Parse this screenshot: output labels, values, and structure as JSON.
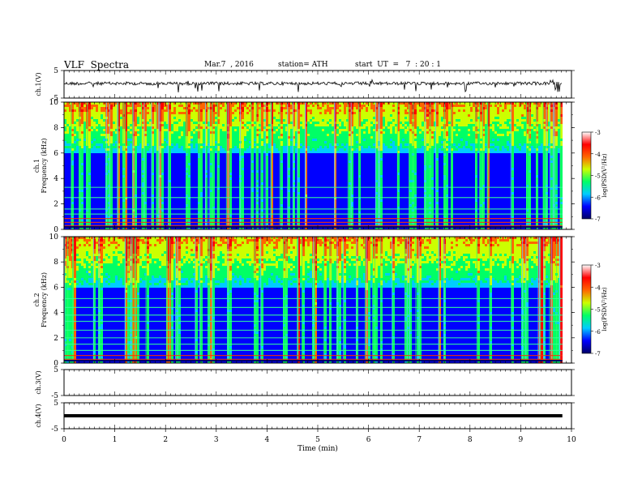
{
  "header": {
    "title": "VLF  Spectra",
    "date": "Mar.7  , 2016",
    "station": "station= ATH",
    "start": "start  UT  =   7  : 20 : 1"
  },
  "chart_data": {
    "type": "heatmap",
    "x_axis": {
      "label": "Time  (min)",
      "range": [
        0,
        10
      ],
      "ticks": [
        "0",
        "1",
        "2",
        "3",
        "4",
        "5",
        "6",
        "7",
        "8",
        "9",
        "10"
      ]
    },
    "panels": [
      {
        "name": "ch1-waveform",
        "ylabel": "ch.1(V)",
        "yticks": [
          "5",
          "-5"
        ],
        "yrange": [
          -5,
          5
        ],
        "kind": "waveform",
        "level": 0.3
      },
      {
        "name": "ch1-spectrogram",
        "ylabel_top": "ch.1",
        "ylabel": "Frequency  (kHz)",
        "yticks": [
          "0",
          "2",
          "4",
          "6",
          "8",
          "10"
        ],
        "yrange": [
          0,
          10
        ],
        "kind": "spectrogram",
        "data_end_min": 9.82
      },
      {
        "name": "ch2-spectrogram",
        "ylabel_top": "ch.2",
        "ylabel": "Frequency  (kHz)",
        "yticks": [
          "0",
          "2",
          "4",
          "6",
          "8",
          "10"
        ],
        "yrange": [
          0,
          10
        ],
        "kind": "spectrogram",
        "data_end_min": 9.82
      },
      {
        "name": "ch3-waveform",
        "ylabel": "ch.3(V)",
        "yticks": [
          "5",
          "-5"
        ],
        "yrange": [
          -5,
          5
        ],
        "kind": "flat",
        "level": 5
      },
      {
        "name": "ch4-waveform",
        "ylabel": "ch.4(V)",
        "yticks": [
          "5",
          "-5"
        ],
        "yrange": [
          -5,
          5
        ],
        "kind": "flat",
        "level": 0
      }
    ],
    "colorbar": {
      "label": "log(PSD(V²/Hz)",
      "ticks": [
        "-3",
        "-4",
        "-5",
        "-6",
        "-7"
      ],
      "range": [
        -7,
        -3
      ],
      "colors": [
        "#000066",
        "#0000ff",
        "#00ccff",
        "#00ff66",
        "#ccff00",
        "#ff6600",
        "#ff0000",
        "#ffffff"
      ]
    }
  }
}
